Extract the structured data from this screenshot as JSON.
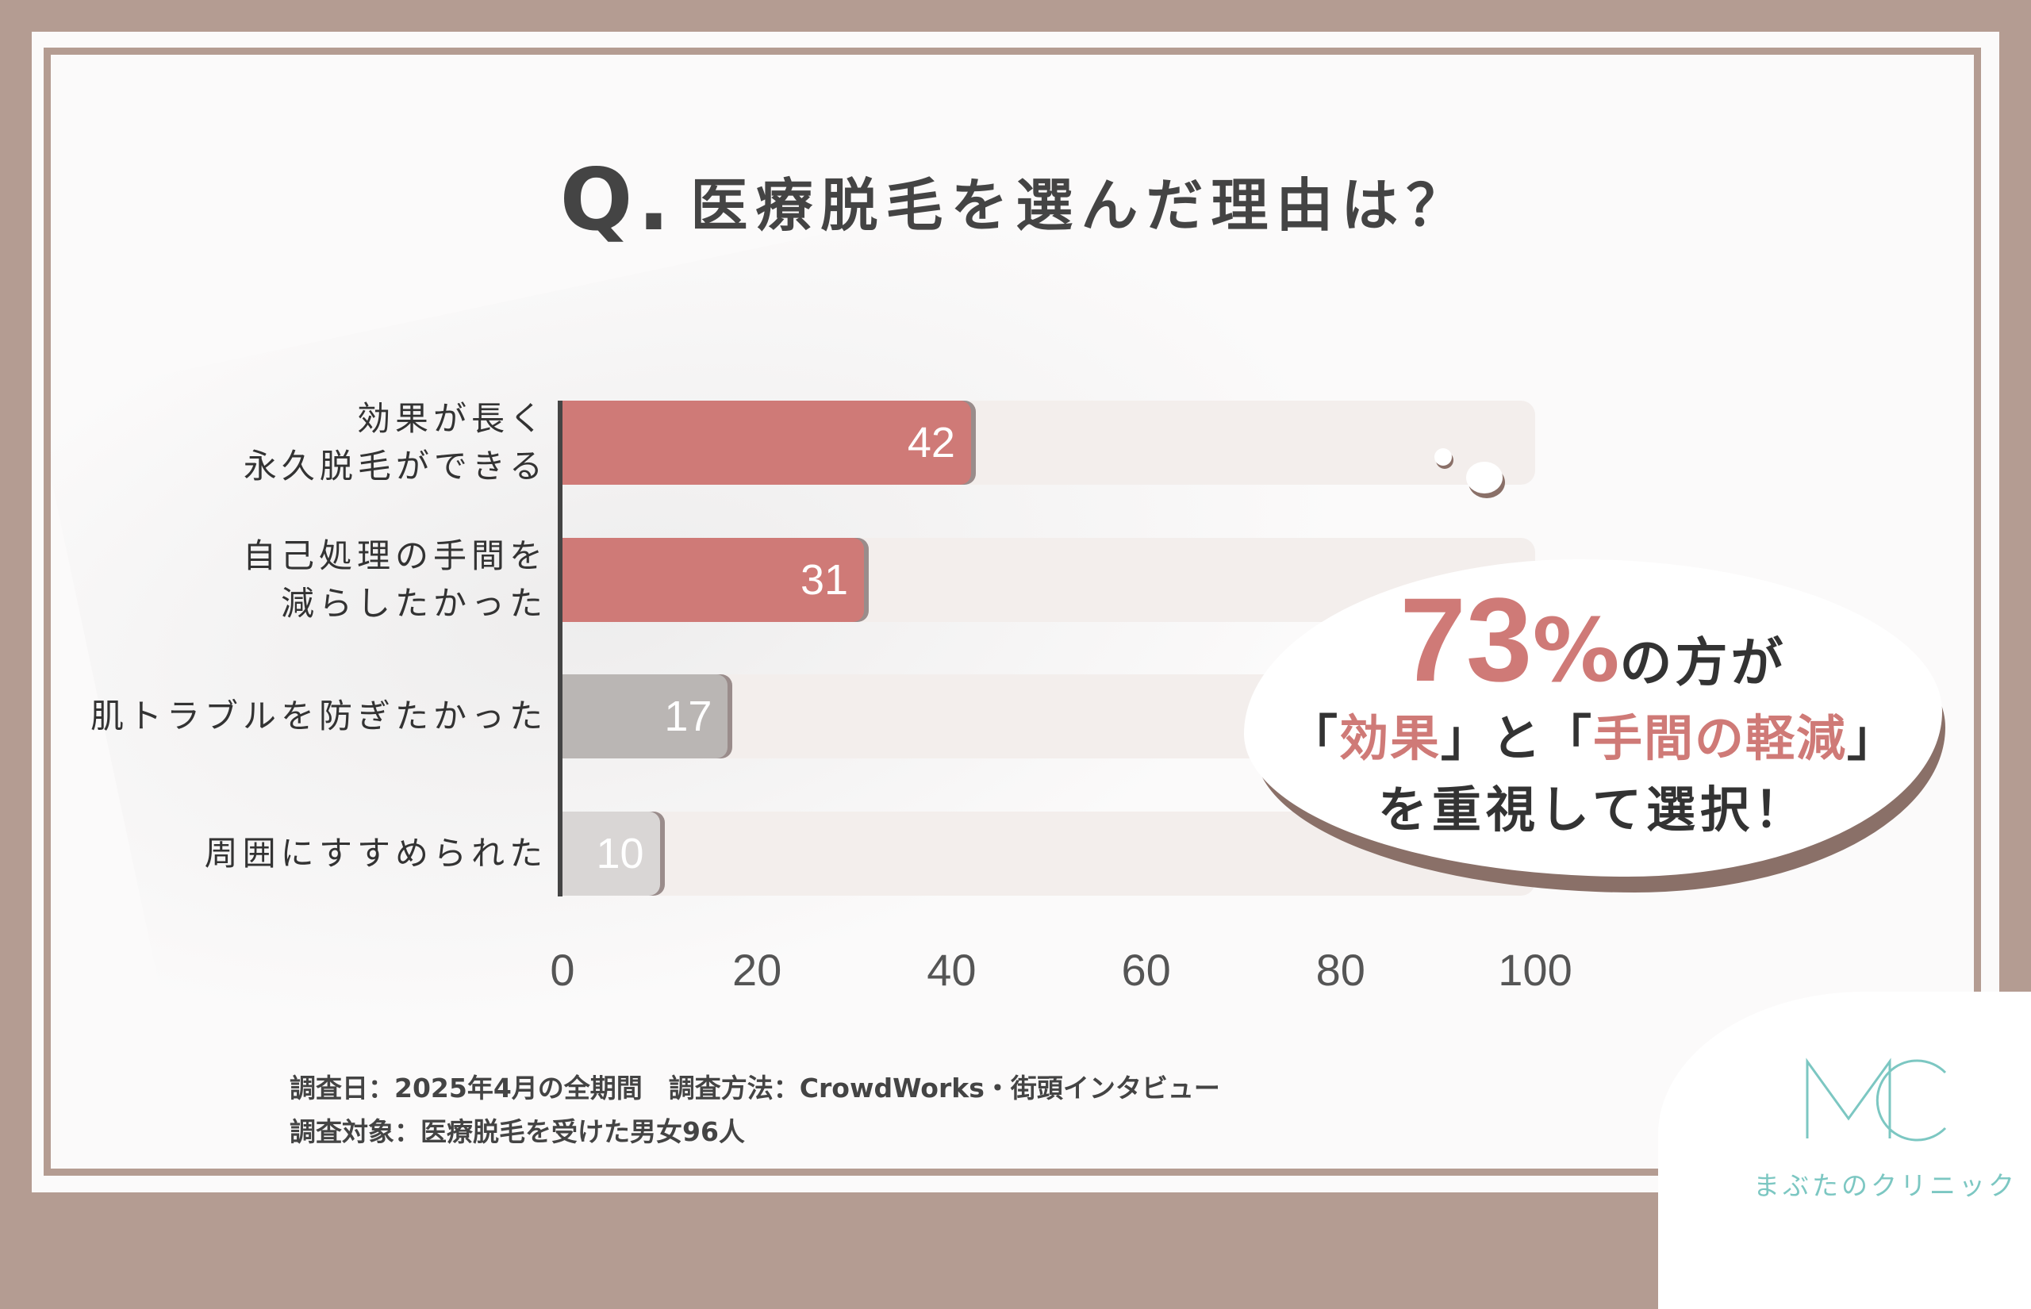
{
  "title": {
    "q": "Q.",
    "text": "医療脱毛を選んだ理由は？"
  },
  "chart_data": {
    "type": "bar",
    "orientation": "horizontal",
    "categories": [
      [
        "効果が長く",
        "永久脱毛ができる"
      ],
      [
        "自己処理の手間を",
        "減らしたかった"
      ],
      [
        "肌トラブルを防ぎたかった"
      ],
      [
        "周囲にすすめられた"
      ]
    ],
    "values": [
      42,
      31,
      17,
      10
    ],
    "bar_colors": [
      "#cf7a77",
      "#cf7a77",
      "#bab6b4",
      "#d9d6d5"
    ],
    "xlim": [
      0,
      100
    ],
    "ticks": [
      "0",
      "20",
      "40",
      "60",
      "80",
      "100"
    ],
    "grid": false
  },
  "callout": {
    "percent": "73",
    "percent_sign": "%",
    "line1_rest": "の方が",
    "line2_open1": "「",
    "line2_hl1": "効果",
    "line2_mid": "」と「",
    "line2_hl2": "手間の軽減",
    "line2_close": "」",
    "line3": "を重視して選択！"
  },
  "notes": {
    "line1": "調査日：2025年4月の全期間　調査方法：CrowdWorks・街頭インタビュー",
    "line2": "調査対象：医療脱毛を受けた男女96人"
  },
  "logo": {
    "name": "まぶたのクリニック",
    "color": "#7cc7c2"
  },
  "colors": {
    "accent": "#cf7a77",
    "frame": "#b49c92"
  }
}
